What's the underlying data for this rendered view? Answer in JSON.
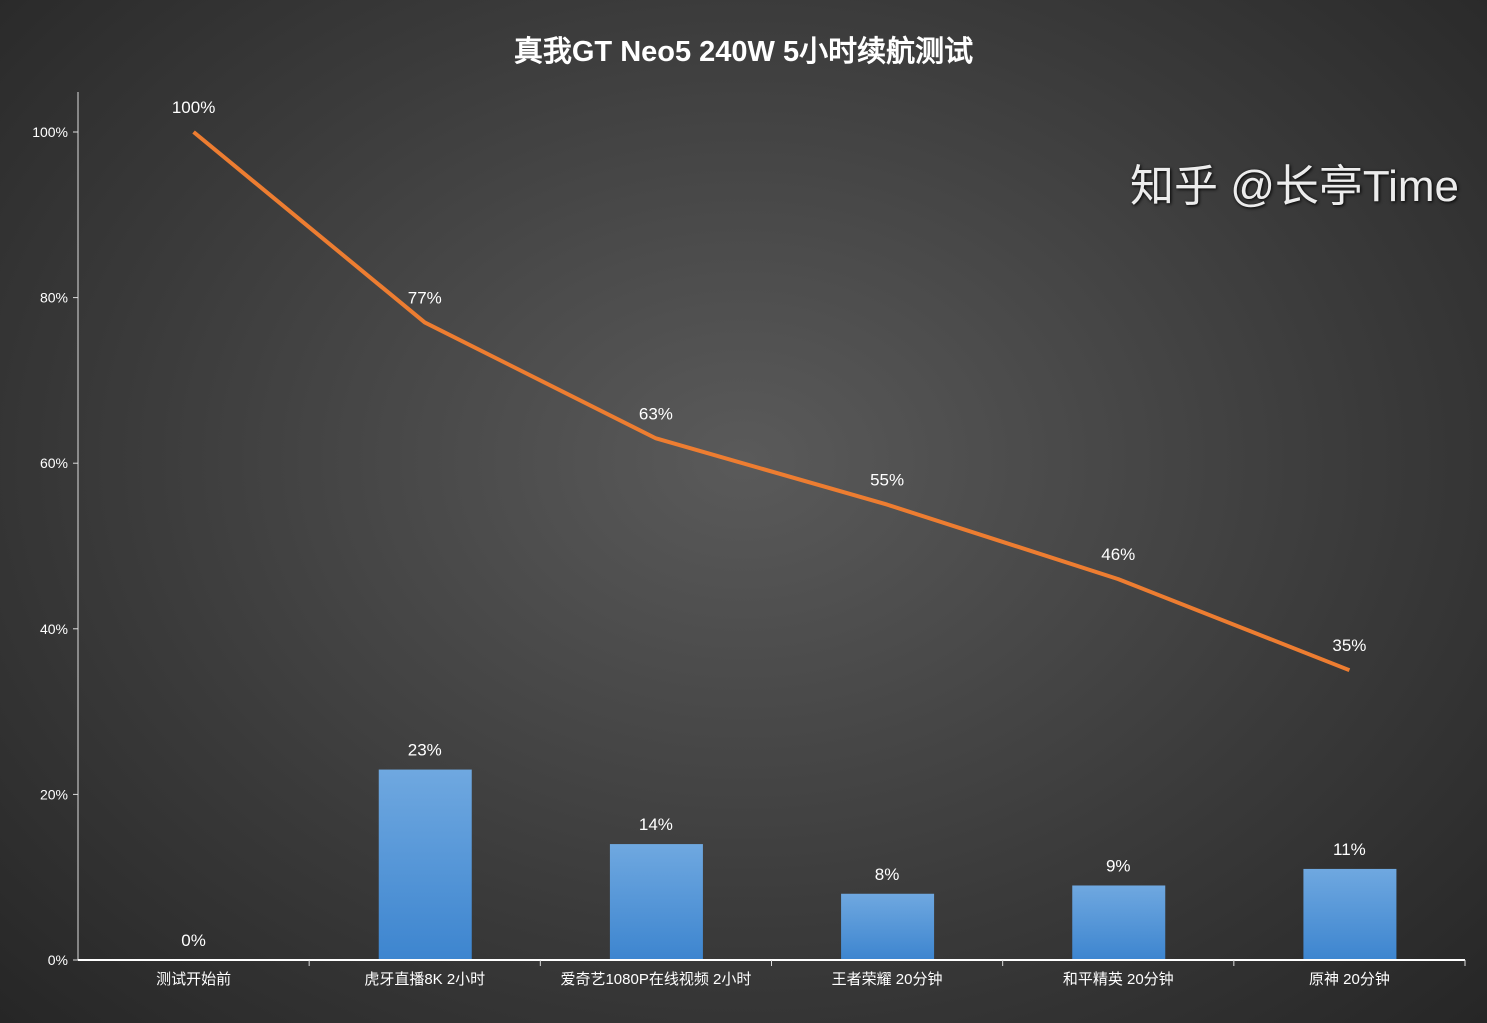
{
  "chart_data": {
    "type": "bar+line",
    "title": "真我GT Neo5 240W  5小时续航测试",
    "categories": [
      "测试开始前",
      "虎牙直播8K  2小时",
      "爱奇艺1080P在线视频 2小时",
      "王者荣耀 20分钟",
      "和平精英 20分钟",
      "原神 20分钟"
    ],
    "series": [
      {
        "type": "bar",
        "values": [
          0,
          23,
          14,
          8,
          9,
          11
        ],
        "labels": [
          "0%",
          "23%",
          "14%",
          "8%",
          "9%",
          "11%"
        ],
        "color": "#4a90d9"
      },
      {
        "type": "line",
        "values": [
          100,
          77,
          63,
          55,
          46,
          35
        ],
        "labels": [
          "100%",
          "77%",
          "63%",
          "55%",
          "46%",
          "35%"
        ],
        "color": "#ed7d31"
      }
    ],
    "ylim": [
      0,
      100
    ],
    "yticks": [
      "0%",
      "20%",
      "40%",
      "60%",
      "80%",
      "100%"
    ],
    "grid": false
  },
  "watermark": "知乎 @长亭Time"
}
